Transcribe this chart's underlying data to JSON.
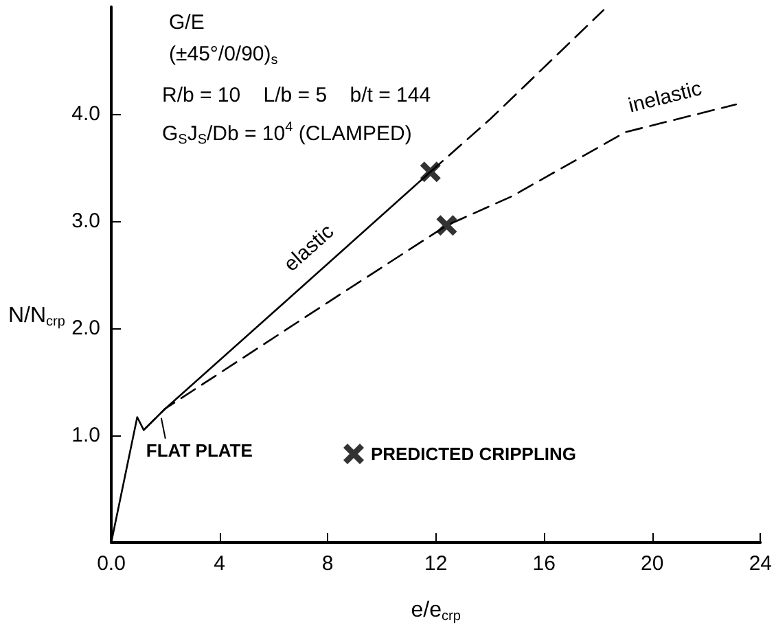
{
  "chart_data": {
    "type": "line",
    "title": "G/E",
    "subtitle": "(±45°/0/90)$_{s}$",
    "annotations": [
      "R/b = 10    L/b = 5    b/t = 144",
      "G$_{S}$J$_{S}$/Db = 10$^{4}$ (CLAMPED)",
      {
        "text": "FLAT PLATE",
        "x": 1.9,
        "y": 1.2
      }
    ],
    "xlabel": "e/e$_{crp}$",
    "ylabel": "N/N$_{crp}$",
    "xlim": [
      0,
      24
    ],
    "xticks": [
      {
        "value": 0,
        "label": "0.0"
      },
      4,
      8,
      12,
      16,
      20,
      24
    ],
    "ylim": [
      0,
      5
    ],
    "yticks": [
      {
        "value": 1,
        "label": "1.0"
      },
      {
        "value": 2,
        "label": "2.0"
      },
      {
        "value": 3,
        "label": "3.0"
      },
      {
        "value": 4,
        "label": "4.0"
      }
    ],
    "grid": false,
    "legend": "bottom",
    "marker": "none",
    "series": [
      {
        "name": "elastic",
        "line_style": "solid",
        "color": "#000000",
        "x": [
          0,
          0.96,
          1.2,
          2,
          6.4,
          11.8
        ],
        "values": [
          0,
          1.17,
          1.05,
          1.25,
          2.24,
          3.46
        ]
      },
      {
        "line_style": "dashed",
        "color": "#000000",
        "x": [
          11.8,
          14,
          18.2
        ],
        "values": [
          3.46,
          3.95,
          4.97
        ]
      },
      {
        "name": "inelastic",
        "line_style": "dashed",
        "color": "#000000",
        "x": [
          1.2,
          2,
          8,
          12.4,
          14.8,
          19,
          23.1
        ],
        "values": [
          1.05,
          1.25,
          2.24,
          2.96,
          3.23,
          3.83,
          4.09
        ]
      },
      {
        "name": "PREDICTED CRIPPLING",
        "type": "scatter",
        "marker": "cross",
        "color": "#000000",
        "x": [
          11.8,
          12.4
        ],
        "values": [
          3.46,
          2.96
        ]
      }
    ]
  }
}
